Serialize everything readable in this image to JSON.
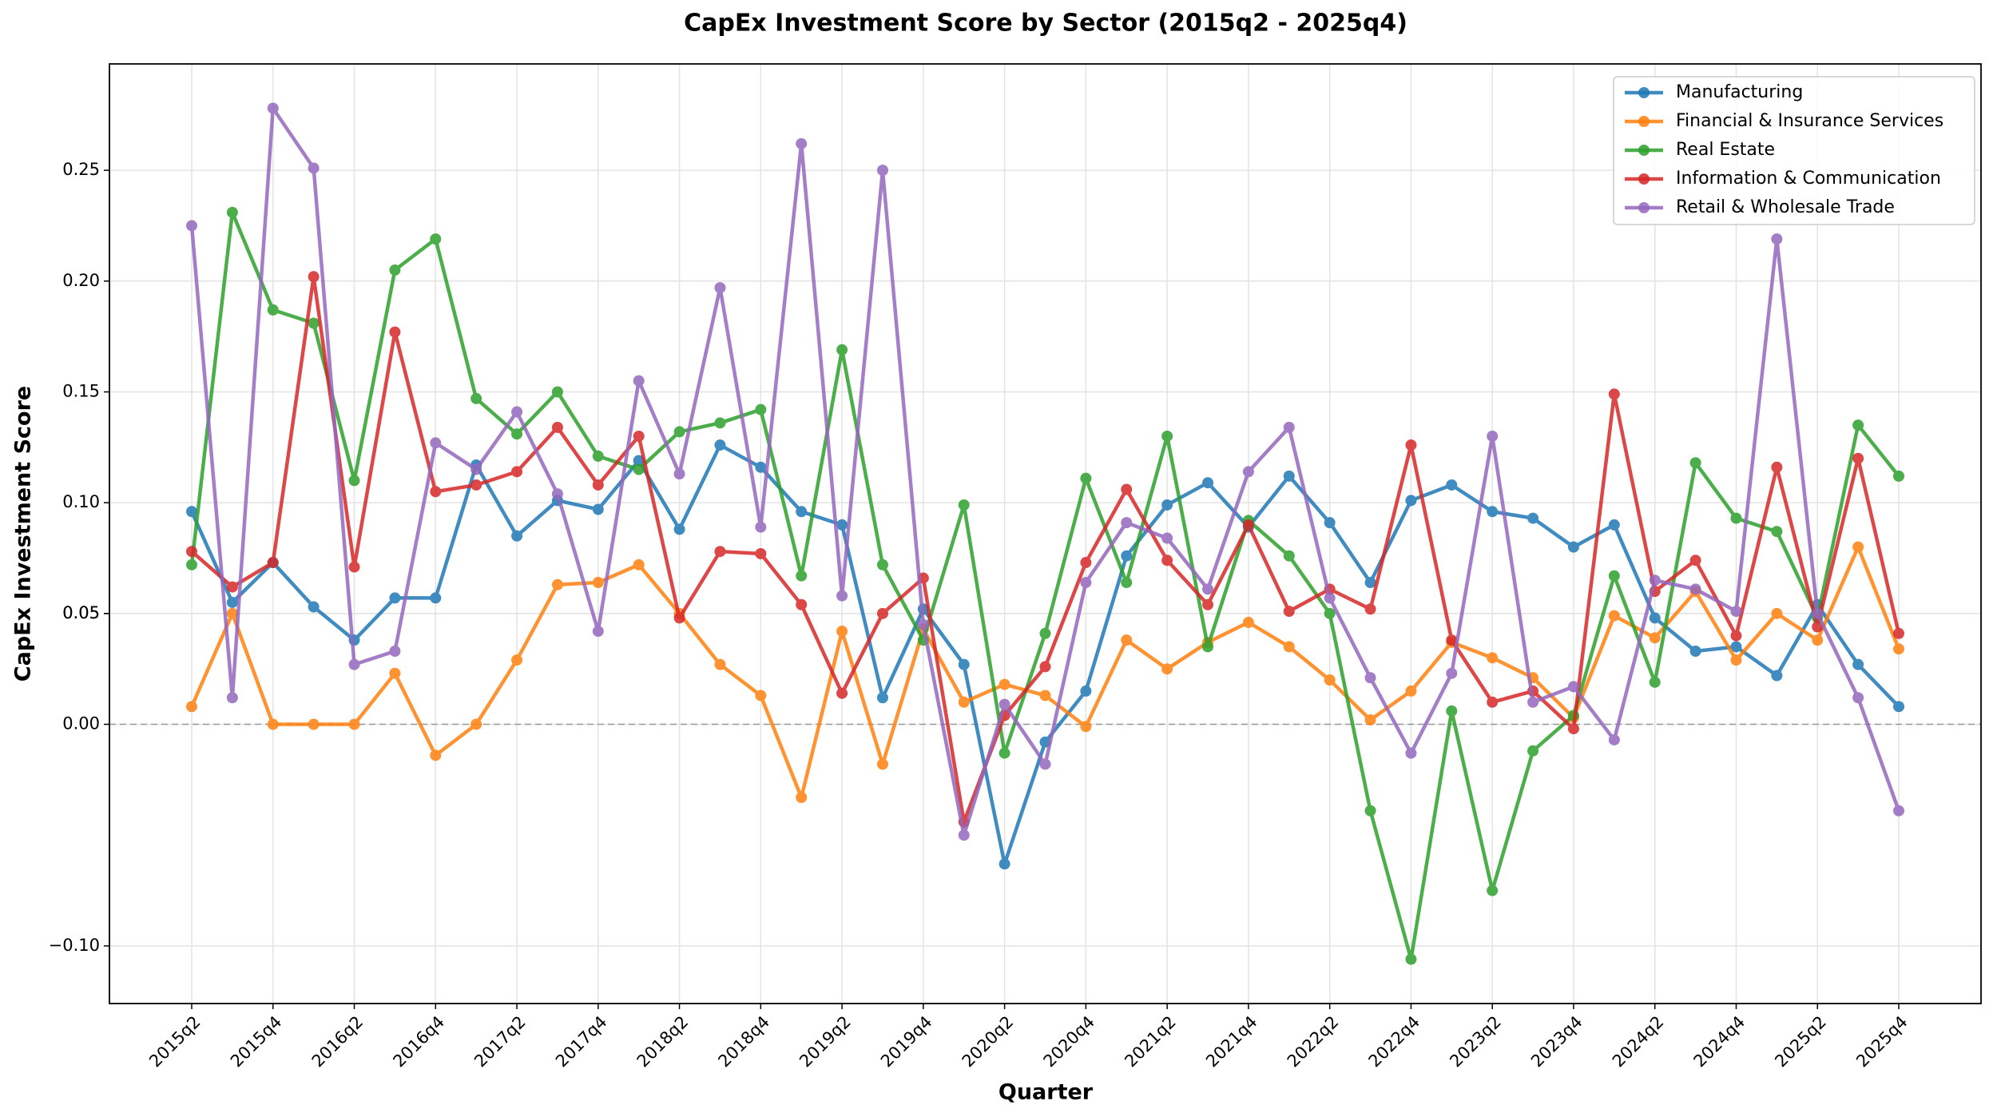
{
  "chart_data": {
    "type": "line",
    "title": "CapEx Investment Score by Sector (2015q2 - 2025q4)",
    "x_label": "Quarter",
    "y_label": "CapEx Investment Score",
    "categories": [
      "2015q2",
      null,
      "2015q4",
      null,
      "2016q2",
      null,
      "2016q4",
      null,
      "2017q2",
      null,
      "2017q4",
      null,
      "2018q2",
      null,
      "2018q4",
      null,
      "2019q2",
      null,
      "2019q4",
      null,
      "2020q2",
      null,
      "2020q4",
      null,
      "2021q2",
      null,
      "2021q4",
      null,
      "2022q2",
      null,
      "2022q4",
      null,
      "2023q2",
      null,
      "2023q4",
      null,
      "2024q2",
      null,
      "2024q4",
      null,
      "2025q2",
      null,
      "2025q4"
    ],
    "series": [
      {
        "name": "Manufacturing",
        "color": "#1f77b4",
        "values": [
          0.096,
          0.055,
          0.073,
          0.053,
          0.038,
          0.057,
          0.057,
          0.117,
          0.085,
          0.101,
          0.097,
          0.119,
          0.088,
          0.126,
          0.116,
          0.096,
          0.09,
          0.012,
          0.052,
          0.027,
          -0.063,
          -0.008,
          0.015,
          0.076,
          0.099,
          0.109,
          0.089,
          0.112,
          0.091,
          0.064,
          0.101,
          0.108,
          0.096,
          0.093,
          0.08,
          0.09,
          0.048,
          0.033,
          0.035,
          0.022,
          0.054,
          0.027,
          0.008
        ]
      },
      {
        "name": "Financial & Insurance Services",
        "color": "#ff7f0e",
        "values": [
          0.008,
          0.05,
          0.0,
          0.0,
          0.0,
          0.023,
          -0.014,
          0.0,
          0.029,
          0.063,
          0.064,
          0.072,
          0.05,
          0.027,
          0.013,
          -0.033,
          0.042,
          -0.018,
          0.043,
          0.01,
          0.018,
          0.013,
          -0.001,
          0.038,
          0.025,
          0.037,
          0.046,
          0.035,
          0.02,
          0.002,
          0.015,
          0.037,
          0.03,
          0.021,
          0.003,
          0.049,
          0.039,
          0.06,
          0.029,
          0.05,
          0.038,
          0.08,
          0.034
        ]
      },
      {
        "name": "Real Estate",
        "color": "#2ca02c",
        "values": [
          0.072,
          0.231,
          0.187,
          0.181,
          0.11,
          0.205,
          0.219,
          0.147,
          0.131,
          0.15,
          0.121,
          0.115,
          0.132,
          0.136,
          0.142,
          0.067,
          0.169,
          0.072,
          0.038,
          0.099,
          -0.013,
          0.041,
          0.111,
          0.064,
          0.13,
          0.035,
          0.092,
          0.076,
          0.05,
          -0.039,
          -0.106,
          0.006,
          -0.075,
          -0.012,
          0.004,
          0.067,
          0.019,
          0.118,
          0.093,
          0.087,
          0.048,
          0.135,
          0.112
        ]
      },
      {
        "name": "Information & Communication",
        "color": "#d62728",
        "values": [
          0.078,
          0.062,
          0.073,
          0.202,
          0.071,
          0.177,
          0.105,
          0.108,
          0.114,
          0.134,
          0.108,
          0.13,
          0.048,
          0.078,
          0.077,
          0.054,
          0.014,
          0.05,
          0.066,
          -0.044,
          0.004,
          0.026,
          0.073,
          0.106,
          0.074,
          0.054,
          0.09,
          0.051,
          0.061,
          0.052,
          0.126,
          0.038,
          0.01,
          0.015,
          -0.002,
          0.149,
          0.06,
          0.074,
          0.04,
          0.116,
          0.044,
          0.12,
          0.041
        ]
      },
      {
        "name": "Retail & Wholesale Trade",
        "color": "#9467bd",
        "values": [
          0.225,
          0.012,
          0.278,
          0.251,
          0.027,
          0.033,
          0.127,
          0.115,
          0.141,
          0.104,
          0.042,
          0.155,
          0.113,
          0.197,
          0.089,
          0.262,
          0.058,
          0.25,
          0.045,
          -0.05,
          0.009,
          -0.018,
          0.064,
          0.091,
          0.084,
          0.061,
          0.114,
          0.134,
          0.057,
          0.021,
          -0.013,
          0.023,
          0.13,
          0.01,
          0.017,
          -0.007,
          0.065,
          0.061,
          0.051,
          0.219,
          0.05,
          0.012,
          -0.039
        ]
      }
    ],
    "ylim": [
      -0.126,
      0.298
    ],
    "yticks": [
      {
        "value": -0.1,
        "label": "−0.10"
      },
      0.05,
      {
        "value": 0,
        "label": "0.00"
      },
      0.05,
      {
        "value": 0.1,
        "label": "0.10"
      },
      0.15,
      {
        "value": 0.2,
        "label": "0.20"
      },
      0.25
    ],
    "grid": true,
    "legend": "upper right"
  }
}
